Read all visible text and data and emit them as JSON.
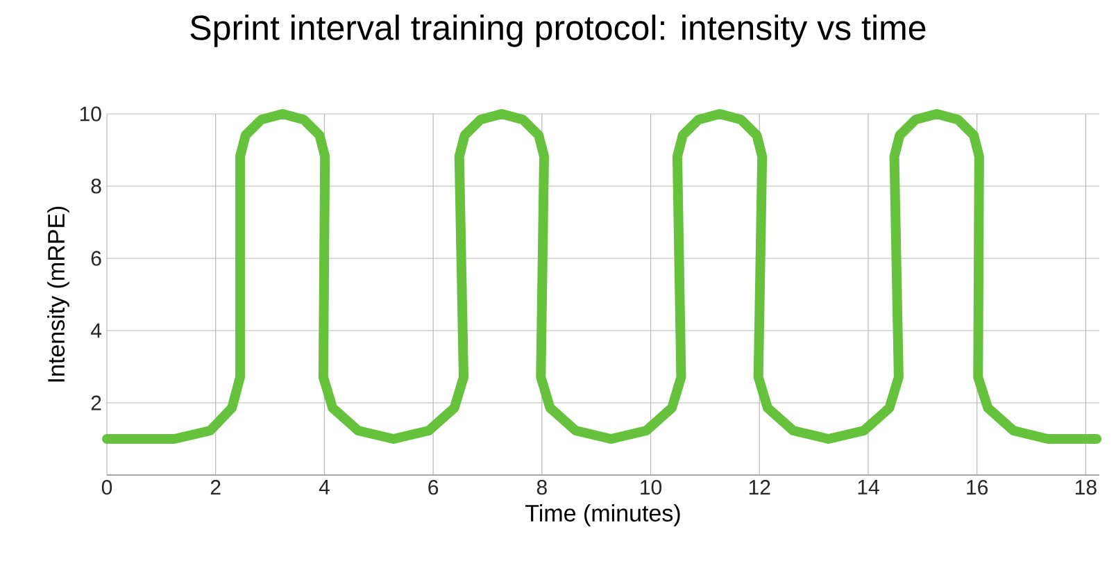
{
  "chart_data": {
    "type": "line",
    "title": "Sprint interval training protocol: intensity vs time",
    "xlabel": "Time (minutes)",
    "ylabel": "Intensity (mRPE)",
    "x": [
      0,
      1.24,
      1.9,
      2.3,
      2.45,
      2.45,
      2.55,
      2.84,
      3.23,
      3.62,
      3.91,
      4.01,
      3.98,
      4.15,
      4.62,
      5.27,
      5.92,
      6.39,
      6.56,
      6.48,
      6.58,
      6.87,
      7.26,
      7.65,
      7.94,
      8.04,
      7.98,
      8.15,
      8.62,
      9.27,
      9.92,
      10.39,
      10.56,
      10.49,
      10.59,
      10.88,
      11.27,
      11.66,
      11.95,
      12.05,
      11.98,
      12.15,
      12.62,
      13.27,
      13.92,
      14.39,
      14.56,
      14.48,
      14.58,
      14.87,
      15.26,
      15.65,
      15.94,
      16.04,
      16.02,
      16.2,
      16.67,
      17.3,
      18.2
    ],
    "series": [
      {
        "color": "#66c23c",
        "values": [
          1,
          1,
          1.23,
          1.86,
          2.71,
          8.82,
          9.41,
          9.84,
          10,
          9.84,
          9.41,
          8.82,
          2.71,
          1.86,
          1.23,
          1,
          1.23,
          1.86,
          2.71,
          8.82,
          9.41,
          9.84,
          10,
          9.84,
          9.41,
          8.82,
          2.71,
          1.86,
          1.23,
          1,
          1.23,
          1.86,
          2.71,
          8.82,
          9.41,
          9.84,
          10,
          9.84,
          9.41,
          8.82,
          2.71,
          1.86,
          1.23,
          1,
          1.23,
          1.86,
          2.71,
          8.82,
          9.41,
          9.84,
          10,
          9.84,
          9.41,
          8.82,
          2.71,
          1.86,
          1.23,
          1,
          1
        ]
      }
    ],
    "xlim": [
      0,
      18.25
    ],
    "ylim": [
      0,
      10
    ],
    "xticks": [
      0,
      2,
      4,
      6,
      8,
      10,
      12,
      14,
      16,
      18
    ],
    "yticks": [
      2,
      4,
      6,
      8,
      10
    ],
    "grid": true,
    "marker": "none",
    "line_style": "solid"
  }
}
